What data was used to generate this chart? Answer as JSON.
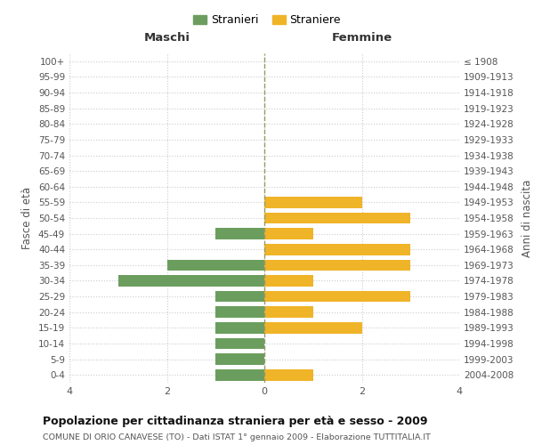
{
  "age_groups": [
    "0-4",
    "5-9",
    "10-14",
    "15-19",
    "20-24",
    "25-29",
    "30-34",
    "35-39",
    "40-44",
    "45-49",
    "50-54",
    "55-59",
    "60-64",
    "65-69",
    "70-74",
    "75-79",
    "80-84",
    "85-89",
    "90-94",
    "95-99",
    "100+"
  ],
  "birth_years": [
    "2004-2008",
    "1999-2003",
    "1994-1998",
    "1989-1993",
    "1984-1988",
    "1979-1983",
    "1974-1978",
    "1969-1973",
    "1964-1968",
    "1959-1963",
    "1954-1958",
    "1949-1953",
    "1944-1948",
    "1939-1943",
    "1934-1938",
    "1929-1933",
    "1924-1928",
    "1919-1923",
    "1914-1918",
    "1909-1913",
    "≤ 1908"
  ],
  "males": [
    1,
    1,
    1,
    1,
    1,
    1,
    3,
    2,
    0,
    1,
    0,
    0,
    0,
    0,
    0,
    0,
    0,
    0,
    0,
    0,
    0
  ],
  "females": [
    1,
    0,
    0,
    2,
    1,
    3,
    1,
    3,
    3,
    1,
    3,
    2,
    0,
    0,
    0,
    0,
    0,
    0,
    0,
    0,
    0
  ],
  "male_color": "#6b9e5e",
  "female_color": "#f0b429",
  "background_color": "#ffffff",
  "grid_color": "#cccccc",
  "title": "Popolazione per cittadinanza straniera per età e sesso - 2009",
  "subtitle": "COMUNE DI ORIO CANAVESE (TO) - Dati ISTAT 1° gennaio 2009 - Elaborazione TUTTITALIA.IT",
  "xlabel_left": "Maschi",
  "xlabel_right": "Femmine",
  "ylabel_left": "Fasce di età",
  "ylabel_right": "Anni di nascita",
  "legend_male": "Stranieri",
  "legend_female": "Straniere",
  "xlim": 4,
  "bar_height": 0.72
}
